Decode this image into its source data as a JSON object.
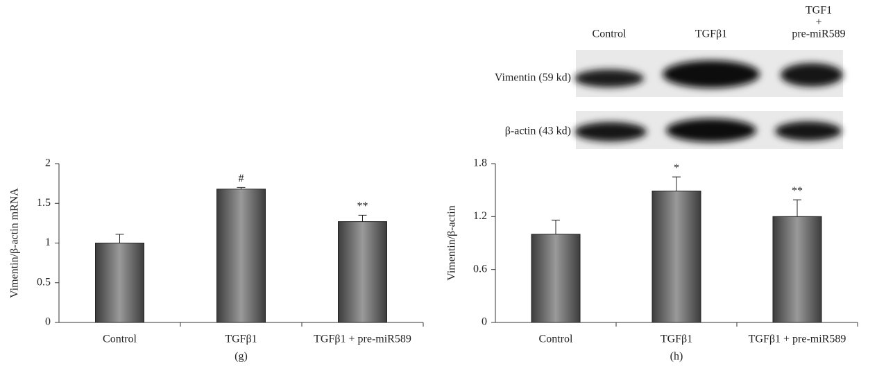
{
  "chart_data": [
    {
      "type": "bar",
      "label": "(g)",
      "ylabel": "Vimentin/β-actin mRNA",
      "categories": [
        "Control",
        "TGFβ1",
        "TGFβ1 + pre-miR589"
      ],
      "values": [
        1.0,
        1.68,
        1.27
      ],
      "errors": [
        0.11,
        0.02,
        0.08
      ],
      "annotations": [
        null,
        "#",
        "**"
      ],
      "color": "#5a5a5a",
      "ylim": [
        0,
        2
      ],
      "yticks": [
        0,
        0.5,
        1,
        1.5,
        2
      ]
    },
    {
      "type": "bar",
      "label": "(h)",
      "ylabel": "Vimentin/β-actin",
      "categories": [
        "Control",
        "TGFβ1",
        "TGFβ1 + pre-miR589"
      ],
      "values": [
        1.0,
        1.49,
        1.2
      ],
      "errors": [
        0.16,
        0.16,
        0.19
      ],
      "annotations": [
        null,
        "*",
        "**"
      ],
      "color": "#5a5a5a",
      "ylim": [
        0,
        1.8
      ],
      "yticks": [
        0,
        0.6,
        1.2,
        1.8
      ]
    }
  ],
  "blot": {
    "lanes": [
      [
        "Control"
      ],
      [
        "TGFβ1"
      ],
      [
        "TGF1",
        "+",
        "pre-miR589"
      ]
    ],
    "rows": [
      "Vimentin (59 kd)",
      "β-actin (43 kd)"
    ]
  }
}
